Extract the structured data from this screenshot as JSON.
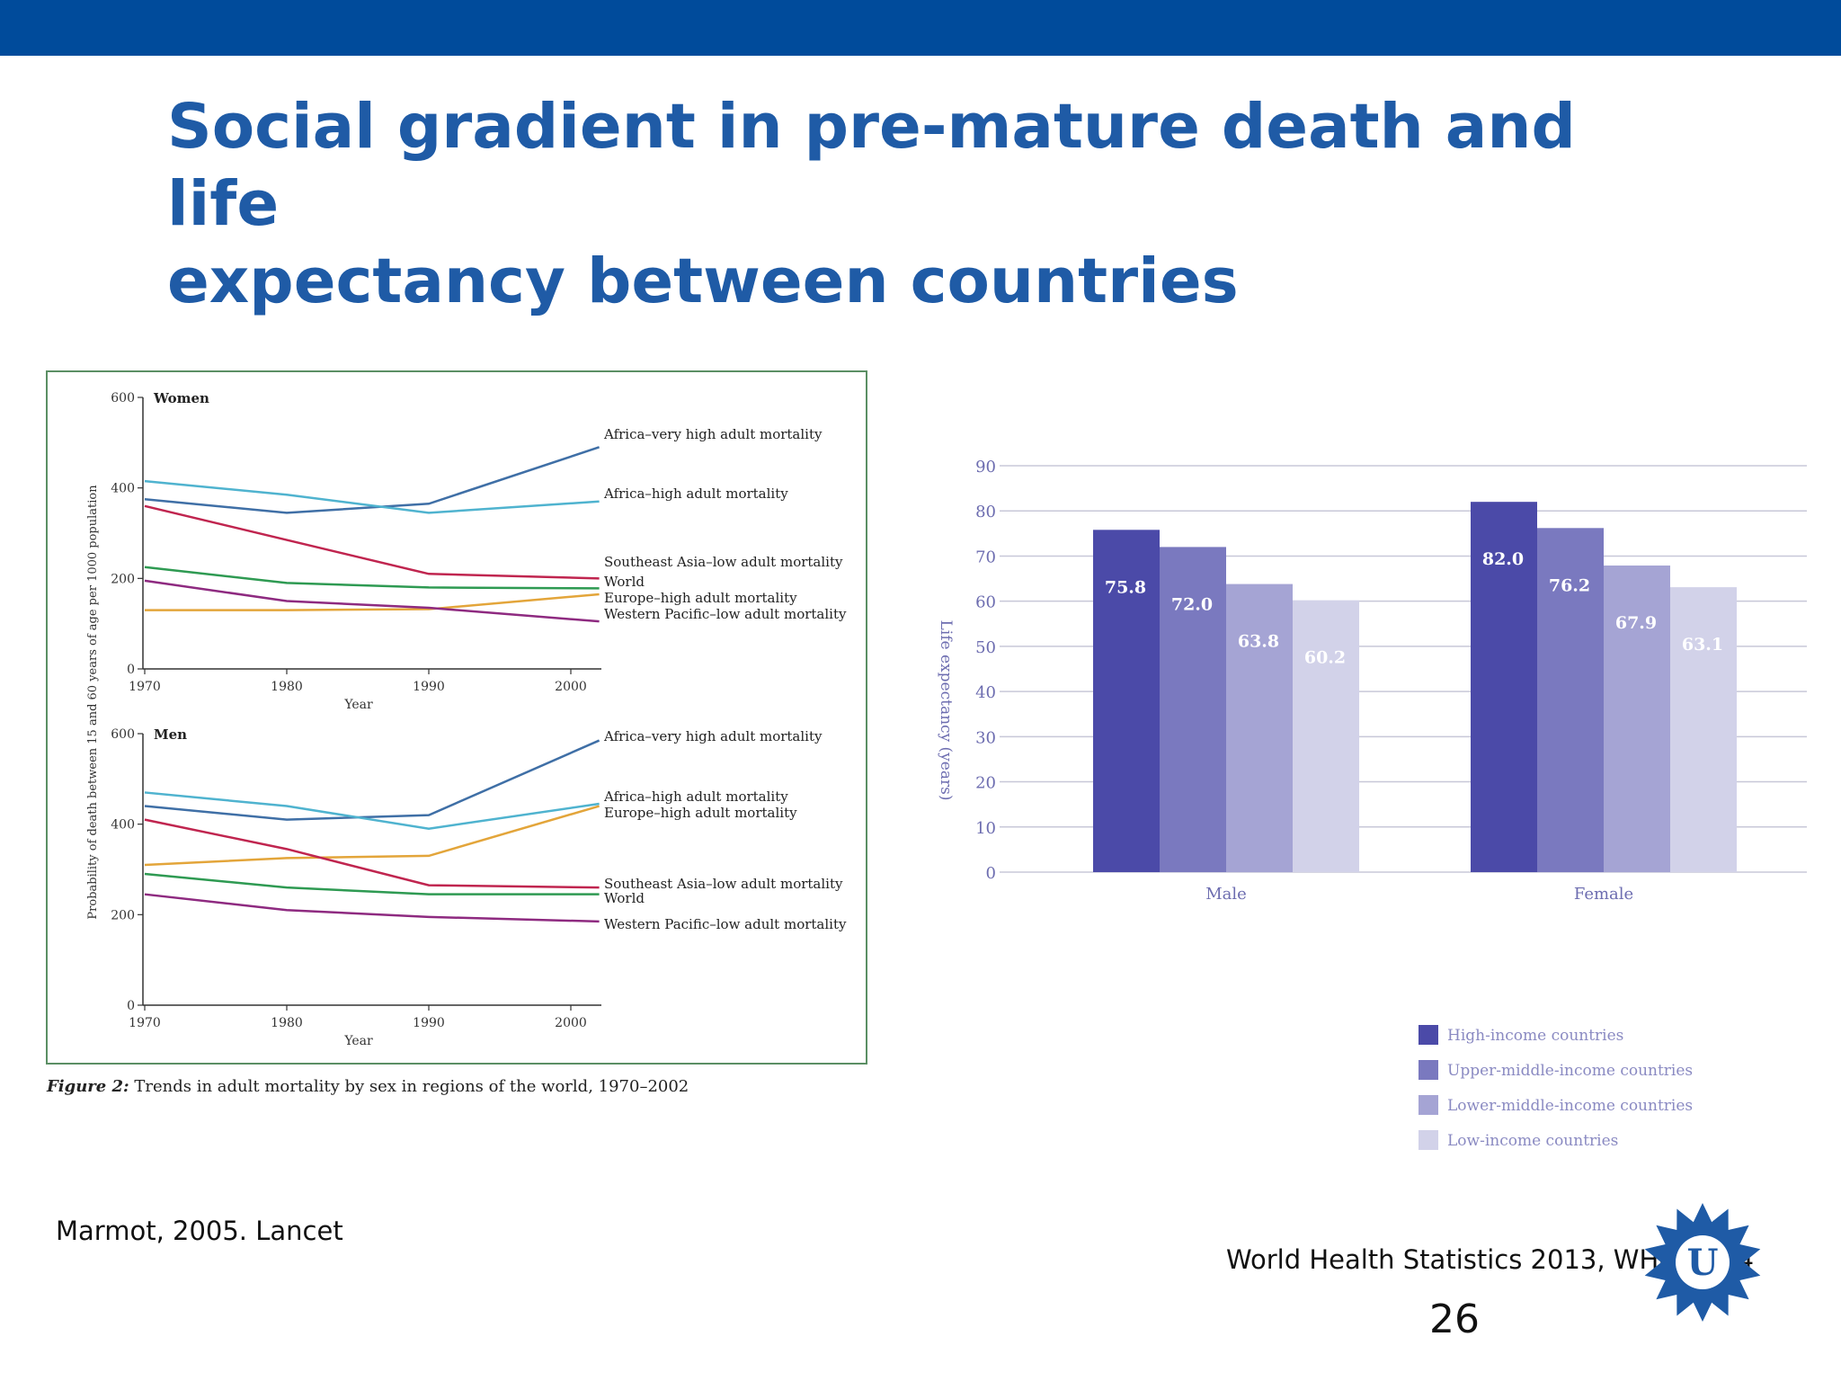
{
  "header": {
    "title_line1": "Social gradient in pre-mature death and life",
    "title_line2": "expectancy between countries"
  },
  "colors": {
    "top_bar": "#004b9b",
    "title": "#1f5ba6",
    "panel_border": "#5b8f64",
    "bar_high": "#4b4aa8",
    "bar_upper_middle": "#7a79bf",
    "bar_lower_middle": "#a5a4d4",
    "bar_low": "#d2d2e9"
  },
  "chart_data": [
    {
      "type": "line",
      "panel": "Women",
      "ylabel": "Probability of death between 15 and 60 years of age per 1000 population",
      "xlabel": "Year",
      "x": [
        1970,
        1980,
        1990,
        2002
      ],
      "x_ticks": [
        "1970",
        "1980",
        "1990",
        "2000"
      ],
      "ylim": [
        0,
        600
      ],
      "y_ticks": [
        "0",
        "200",
        "400",
        "600"
      ],
      "series": [
        {
          "name": "Africa–very high adult mortality",
          "color": "#3f6fa6",
          "values": [
            375,
            345,
            365,
            490
          ]
        },
        {
          "name": "Africa–high adult mortality",
          "color": "#4fb3cf",
          "values": [
            415,
            385,
            345,
            370
          ]
        },
        {
          "name": "Southeast Asia–low adult mortality",
          "color": "#c0254f",
          "values": [
            360,
            285,
            210,
            200
          ]
        },
        {
          "name": "World",
          "color": "#2e9a52",
          "values": [
            225,
            190,
            180,
            178
          ]
        },
        {
          "name": "Europe–high adult mortality",
          "color": "#e3a53a",
          "values": [
            130,
            130,
            132,
            165
          ]
        },
        {
          "name": "Western Pacific–low adult mortality",
          "color": "#8e2a80",
          "values": [
            195,
            150,
            135,
            105
          ]
        }
      ]
    },
    {
      "type": "line",
      "panel": "Men",
      "xlabel": "Year",
      "x": [
        1970,
        1980,
        1990,
        2002
      ],
      "x_ticks": [
        "1970",
        "1980",
        "1990",
        "2000"
      ],
      "ylim": [
        0,
        600
      ],
      "y_ticks": [
        "0",
        "200",
        "400",
        "600"
      ],
      "series": [
        {
          "name": "Africa–very high adult mortality",
          "color": "#3f6fa6",
          "values": [
            440,
            410,
            420,
            585
          ]
        },
        {
          "name": "Africa–high adult mortality",
          "color": "#4fb3cf",
          "values": [
            470,
            440,
            390,
            445
          ]
        },
        {
          "name": "Europe–high adult mortality",
          "color": "#e3a53a",
          "values": [
            310,
            325,
            330,
            440
          ]
        },
        {
          "name": "Southeast Asia–low adult mortality",
          "color": "#c0254f",
          "values": [
            410,
            345,
            265,
            260
          ]
        },
        {
          "name": "World",
          "color": "#2e9a52",
          "values": [
            290,
            260,
            245,
            245
          ]
        },
        {
          "name": "Western Pacific–low adult mortality",
          "color": "#8e2a80",
          "values": [
            245,
            210,
            195,
            185
          ]
        }
      ]
    },
    {
      "type": "bar",
      "categories": [
        "Male",
        "Female"
      ],
      "ylabel": "Life expectancy (years)",
      "ylim": [
        0,
        90
      ],
      "y_ticks": [
        "0",
        "10",
        "20",
        "30",
        "40",
        "50",
        "60",
        "70",
        "80",
        "90"
      ],
      "grid": true,
      "legend_position": "bottom-right",
      "series": [
        {
          "name": "High-income countries",
          "color": "#4b4aa8",
          "values": [
            75.8,
            82.0
          ]
        },
        {
          "name": "Upper-middle-income countries",
          "color": "#7a79bf",
          "values": [
            72.0,
            76.2
          ]
        },
        {
          "name": "Lower-middle-income countries",
          "color": "#a5a4d4",
          "values": [
            63.8,
            67.9
          ]
        },
        {
          "name": "Low-income countries",
          "color": "#d2d2e9",
          "values": [
            60.2,
            63.1
          ]
        }
      ],
      "data_labels": [
        [
          "75.8",
          "82.0"
        ],
        [
          "72.0",
          "76.2"
        ],
        [
          "63.8",
          "67.9"
        ],
        [
          "60.2",
          "63.1"
        ]
      ]
    }
  ],
  "figure_caption": {
    "prefix": "Figure 2:",
    "text": " Trends in adult mortality by sex in regions of the world, 1970–2002"
  },
  "sources": {
    "left": "Marmot, 2005. Lancet",
    "right": "World Health Statistics 2013, WHO 2014"
  },
  "page_number": "26"
}
